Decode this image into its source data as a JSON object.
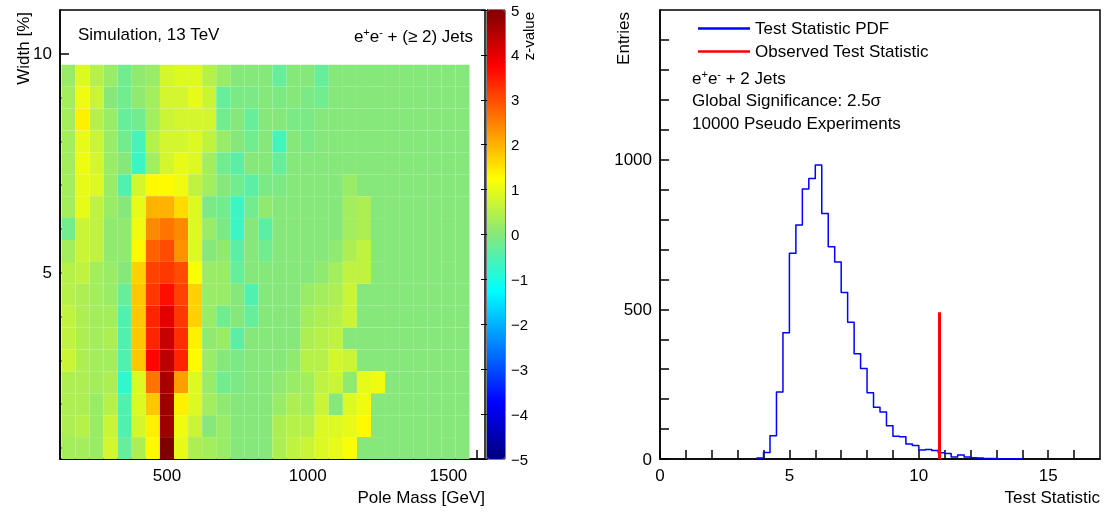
{
  "chart_data": [
    {
      "type": "heatmap",
      "xlabel": "Pole Mass [GeV]",
      "ylabel": "Width [%]",
      "clabel": "z-value",
      "annotations": [
        "Simulation, 13 TeV",
        "e$^{+}$e$^{-}$ + (≥ 2) Jets"
      ],
      "x": [
        150,
        200,
        250,
        300,
        350,
        400,
        450,
        500,
        550,
        600,
        650,
        700,
        750,
        800,
        850,
        900,
        950,
        1000,
        1050,
        1100,
        1150,
        1200,
        1250,
        1300,
        1350,
        1400,
        1450,
        1500,
        1550
      ],
      "y": [
        9.5,
        9,
        8.5,
        8,
        7.5,
        7,
        6.5,
        6,
        5.5,
        5,
        4.5,
        4,
        3.5,
        3,
        2.5,
        2,
        1.5,
        1
      ],
      "cells": [
        [
          0.2,
          0.9,
          0.5,
          0.2,
          -0.2,
          0.1,
          0.2,
          0.8,
          0.9,
          0.9,
          0.5,
          0.2,
          0,
          0,
          0,
          -0.3,
          0,
          0,
          -0.3,
          0,
          0,
          0,
          0,
          0,
          0,
          0,
          0,
          0,
          0
        ],
        [
          0.3,
          1.1,
          0.7,
          0,
          -0.2,
          0.1,
          0.3,
          0.8,
          0.8,
          1.0,
          0.7,
          -0.3,
          -0.1,
          -0.1,
          0,
          -0.1,
          0,
          -0.1,
          -0.2,
          0,
          0,
          0,
          0,
          0,
          0,
          0,
          0,
          0,
          0
        ],
        [
          0.3,
          1.4,
          0.5,
          0.2,
          -0.3,
          -0.2,
          0.3,
          0.7,
          0.8,
          0.8,
          0.8,
          -0.2,
          0,
          -0.3,
          0,
          0,
          -0.1,
          -0.1,
          0,
          0,
          0,
          0,
          0,
          0,
          0,
          0,
          0,
          0,
          0
        ],
        [
          0.3,
          1.0,
          0.7,
          0.2,
          -0.2,
          -0.6,
          0.5,
          0.8,
          0.8,
          0.9,
          0.6,
          0.2,
          0,
          -0.2,
          0,
          -0.6,
          0,
          -0.1,
          0,
          0,
          0,
          0,
          0,
          0,
          0,
          0,
          0,
          0,
          0
        ],
        [
          0.3,
          1.1,
          0.8,
          0.2,
          0,
          -0.7,
          0.3,
          0.8,
          1.0,
          0.9,
          0.3,
          -0.2,
          -0.4,
          0,
          0,
          -0.3,
          0,
          0,
          0,
          0,
          0,
          0,
          0,
          0,
          0,
          0,
          0,
          0,
          0
        ],
        [
          0.3,
          1.0,
          0.9,
          0.2,
          -0.5,
          0.8,
          1.3,
          1.3,
          1.1,
          0.6,
          0.3,
          0,
          -0.2,
          -0.4,
          -0.1,
          -0.1,
          0,
          0,
          0,
          0,
          0.2,
          0,
          0,
          0,
          0,
          0,
          0,
          0,
          0
        ],
        [
          0.3,
          1.0,
          0.6,
          0.2,
          0,
          1.0,
          2.0,
          2.0,
          1.6,
          0.9,
          -0.1,
          -0.2,
          -0.7,
          -0.2,
          0.1,
          0,
          0,
          0,
          0,
          0,
          0.3,
          0.4,
          0,
          0,
          0,
          0,
          0,
          0,
          0
        ],
        [
          -0.2,
          0.7,
          0.6,
          0.1,
          0.1,
          1.1,
          2.4,
          2.6,
          2.4,
          0.9,
          0.2,
          -0.1,
          -0.7,
          0,
          -0.4,
          0,
          0,
          0,
          0,
          0,
          0.3,
          0.4,
          0,
          0,
          0,
          0,
          0,
          0,
          0
        ],
        [
          0.3,
          0.7,
          0.6,
          0.1,
          0.1,
          1.3,
          2.8,
          3.0,
          2.3,
          0.9,
          0,
          0.1,
          -0.4,
          0,
          -0.2,
          0,
          0,
          0,
          0,
          0.1,
          0.4,
          0.6,
          0,
          0,
          0,
          0,
          0,
          0,
          0
        ],
        [
          0.5,
          0.6,
          0.3,
          0.2,
          0,
          1.7,
          3.1,
          3.2,
          3.0,
          1.2,
          0.2,
          0.2,
          -0.3,
          0,
          0,
          0,
          0,
          0,
          0.1,
          0.3,
          0.6,
          0.6,
          0,
          0,
          0,
          0,
          0,
          0,
          0
        ],
        [
          0.5,
          0.4,
          0.3,
          0.2,
          -0.3,
          1.8,
          3.2,
          3.6,
          3.1,
          1.7,
          0.2,
          0.2,
          0,
          -0.5,
          0,
          0,
          0,
          0.2,
          0.3,
          0.4,
          0.7,
          0,
          0,
          0,
          0,
          0,
          0,
          0,
          0
        ],
        [
          0.6,
          0.4,
          0.3,
          0.3,
          -0.5,
          1.8,
          3.4,
          4.0,
          3.2,
          1.7,
          0.2,
          -0.2,
          0,
          -0.3,
          0,
          0,
          0,
          0.3,
          0.4,
          0.5,
          0.7,
          0,
          0,
          0,
          0,
          0,
          0,
          0,
          0
        ],
        [
          0.6,
          0.4,
          0.3,
          0.4,
          -0.5,
          1.8,
          3.4,
          4.3,
          3.3,
          1.4,
          0.1,
          0.2,
          -0.4,
          0,
          0,
          0,
          0,
          0.4,
          0.5,
          0.6,
          0,
          0,
          0,
          0,
          0,
          0,
          0,
          0,
          0
        ],
        [
          0.7,
          0.4,
          0.3,
          0.3,
          -0.5,
          1.8,
          3.7,
          4.4,
          3.4,
          1.3,
          0.2,
          0,
          -0.1,
          0,
          0,
          0,
          0.1,
          0.5,
          0.5,
          0.8,
          0.7,
          0,
          0,
          0,
          0,
          0,
          0,
          0,
          0
        ],
        [
          0.4,
          0.4,
          0.3,
          0.4,
          -0.8,
          0.9,
          2.6,
          4.6,
          2.2,
          0.9,
          0.2,
          -0.2,
          -0.1,
          0,
          0,
          0.1,
          0.2,
          0.3,
          0.6,
          0.7,
          0.1,
          1.0,
          1.1,
          0,
          0,
          0,
          0,
          0,
          0
        ],
        [
          0.4,
          0.4,
          0.2,
          0.5,
          -0.5,
          0.9,
          1.8,
          4.7,
          1.4,
          0.9,
          0.3,
          0.1,
          0,
          0,
          0,
          0.2,
          0.4,
          0.3,
          0.7,
          0,
          0.9,
          1.1,
          0,
          0,
          0,
          0,
          0,
          0,
          0
        ],
        [
          0.4,
          0.5,
          0.2,
          0.7,
          -0.5,
          0.8,
          1.4,
          4.7,
          1.1,
          0.7,
          0,
          0.2,
          0,
          0,
          0,
          0.4,
          0.5,
          0.5,
          0.9,
          0.9,
          1.0,
          1.3,
          0,
          0,
          0,
          0,
          0,
          0,
          0
        ],
        [
          0.3,
          0.3,
          0.2,
          0.8,
          -0.3,
          0.4,
          1.3,
          5.0,
          1.0,
          0.4,
          0.3,
          0.2,
          0,
          0,
          0,
          0.4,
          0.6,
          0.7,
          0.9,
          1.0,
          1.2,
          0,
          0,
          0,
          0,
          0,
          0,
          0,
          0
        ]
      ],
      "clim": [
        -5,
        5
      ],
      "cticks": [
        -5,
        -4,
        -3,
        -2,
        -1,
        0,
        1,
        2,
        3,
        4,
        5
      ],
      "xlim": [
        120,
        1630
      ],
      "xticks": [
        {
          "value": 200,
          "label": null
        },
        {
          "value": 300,
          "label": null
        },
        {
          "value": 400,
          "label": null
        },
        500,
        {
          "value": 600,
          "label": null
        },
        {
          "value": 700,
          "label": null
        },
        {
          "value": 800,
          "label": null
        },
        {
          "value": 900,
          "label": null
        },
        1000,
        {
          "value": 1100,
          "label": null
        },
        {
          "value": 1200,
          "label": null
        },
        {
          "value": 1300,
          "label": null
        },
        {
          "value": 1400,
          "label": null
        },
        1500,
        {
          "value": 1600,
          "label": null
        }
      ],
      "ylim": [
        0.75,
        11
      ],
      "yticks": [
        {
          "value": 1,
          "label": null
        },
        {
          "value": 2,
          "label": null
        },
        {
          "value": 3,
          "label": null
        },
        {
          "value": 4,
          "label": null
        },
        5,
        {
          "value": 6,
          "label": null
        },
        {
          "value": 7,
          "label": null
        },
        {
          "value": 8,
          "label": null
        },
        {
          "value": 9,
          "label": null
        },
        10
      ]
    },
    {
      "type": "histogram",
      "xlabel": "Test Statistic",
      "ylabel": "Entries",
      "annotations": [
        "e$^{+}$e$^{-}$ + 2 Jets",
        "Global Significance: 2.5σ",
        "10000 Pseudo Experiments"
      ],
      "bins": [
        3.75,
        4,
        4.25,
        4.5,
        4.75,
        5,
        5.25,
        5.5,
        5.75,
        6,
        6.25,
        6.5,
        6.75,
        7,
        7.25,
        7.5,
        7.75,
        8,
        8.25,
        8.5,
        8.75,
        9,
        9.25,
        9.5,
        9.75,
        10,
        10.25,
        10.5,
        10.75,
        11,
        11.25,
        11.5,
        11.75,
        12,
        12.25,
        12.5,
        12.75,
        13,
        13.25,
        13.5,
        13.75,
        14
      ],
      "series": [
        {
          "name": "Test Statistic PDF",
          "color": "#0000ff",
          "values": [
            3,
            22,
            78,
            224,
            422,
            687,
            782,
            902,
            937,
            982,
            820,
            709,
            658,
            556,
            457,
            352,
            302,
            221,
            173,
            157,
            111,
            76,
            74,
            50,
            45,
            30,
            32,
            28,
            21,
            18,
            7,
            13,
            7,
            4,
            3,
            2,
            2,
            1,
            1,
            1,
            1
          ]
        },
        {
          "type": "line",
          "name": "Observed Test Statistic",
          "color": "#ff0000",
          "x": [
            10.8,
            10.8
          ],
          "values": [
            0,
            490
          ]
        }
      ],
      "legend": "top left",
      "xlim": [
        0,
        17
      ],
      "xticks": [
        0,
        {
          "value": 1,
          "label": null
        },
        {
          "value": 2,
          "label": null
        },
        {
          "value": 3,
          "label": null
        },
        {
          "value": 4,
          "label": null
        },
        5,
        {
          "value": 6,
          "label": null
        },
        {
          "value": 7,
          "label": null
        },
        {
          "value": 8,
          "label": null
        },
        {
          "value": 9,
          "label": null
        },
        10,
        {
          "value": 11,
          "label": null
        },
        {
          "value": 12,
          "label": null
        },
        {
          "value": 13,
          "label": null
        },
        {
          "value": 14,
          "label": null
        },
        15,
        {
          "value": 16,
          "label": null
        }
      ],
      "ylim": [
        0,
        1500
      ],
      "yticks": [
        0,
        {
          "value": 100,
          "label": null
        },
        {
          "value": 200,
          "label": null
        },
        {
          "value": 300,
          "label": null
        },
        {
          "value": 400,
          "label": null
        },
        500,
        {
          "value": 600,
          "label": null
        },
        {
          "value": 700,
          "label": null
        },
        {
          "value": 800,
          "label": null
        },
        {
          "value": 900,
          "label": null
        },
        1000,
        {
          "value": 1100,
          "label": null
        },
        {
          "value": 1200,
          "label": null
        },
        {
          "value": 1300,
          "label": null
        },
        {
          "value": 1400,
          "label": null
        }
      ]
    }
  ]
}
